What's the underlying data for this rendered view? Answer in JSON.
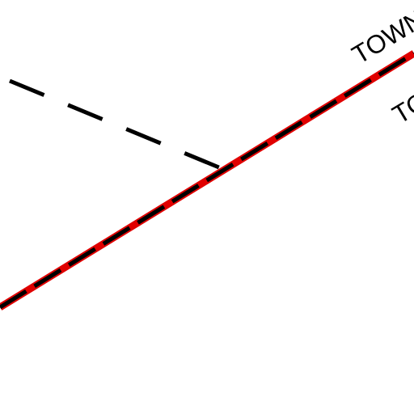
{
  "map": {
    "background_color": "#ffffff",
    "labels": {
      "upper": "TOWN",
      "lower": "TO"
    },
    "lines": {
      "boundary": {
        "style": "dashed",
        "color": "#000000"
      },
      "highlighted_boundary": {
        "style": "red-solid-with-black-dashes",
        "fill_color": "#e00000",
        "dash_color": "#000000"
      }
    }
  }
}
